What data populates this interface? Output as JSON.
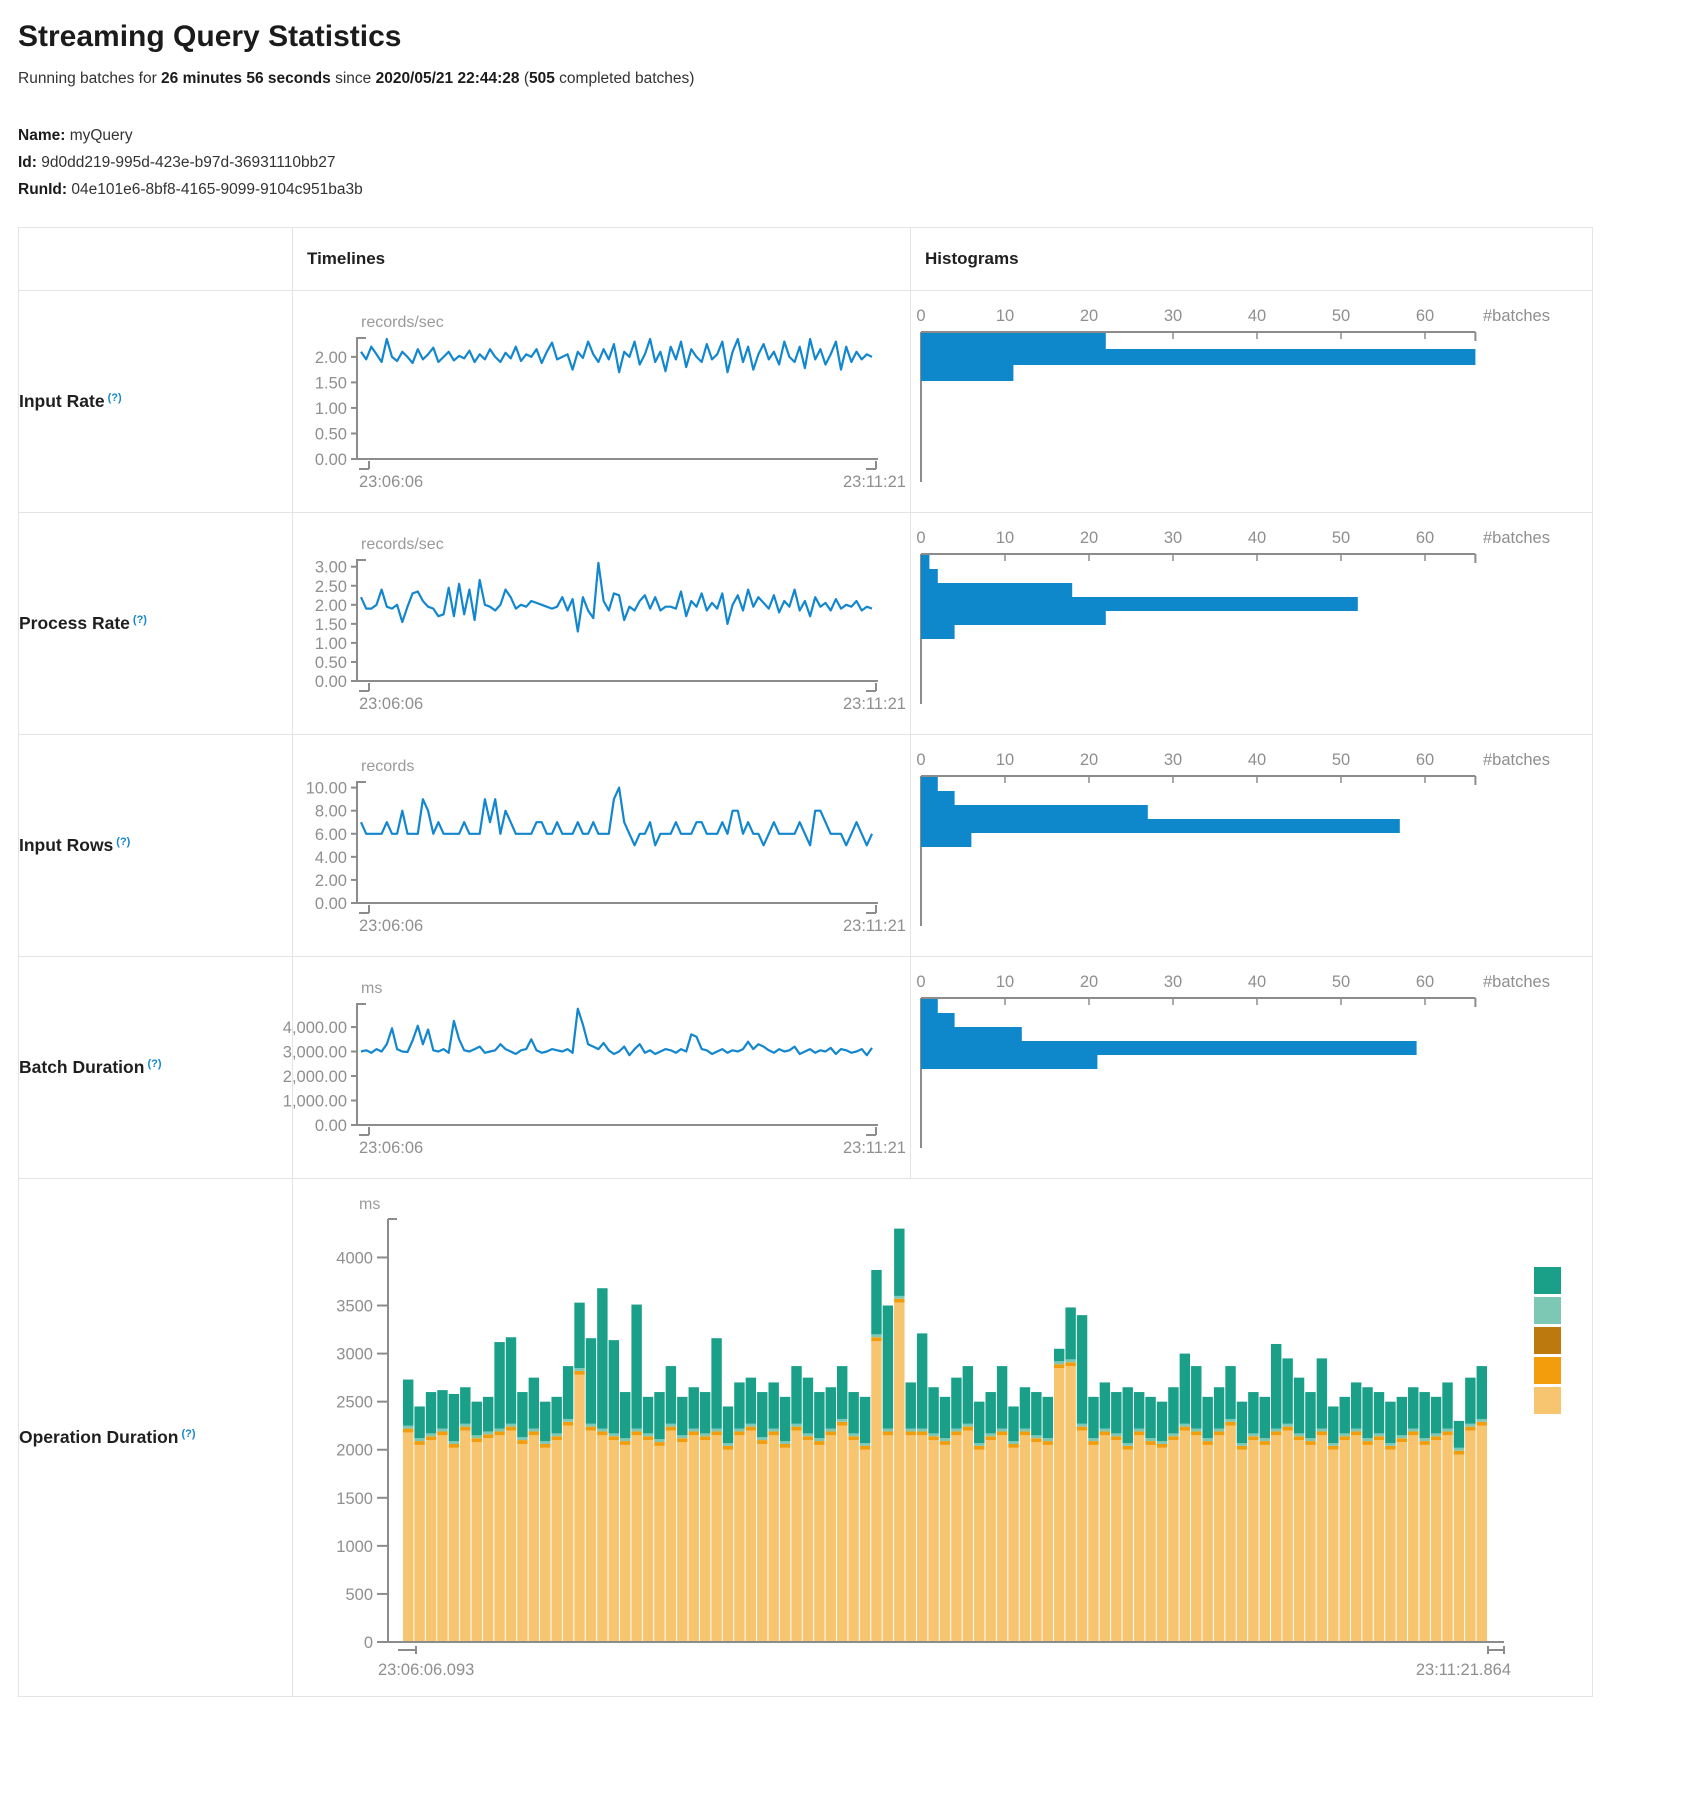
{
  "page": {
    "title": "Streaming Query Statistics",
    "subtitle_parts": [
      "Running batches for ",
      "26 minutes 56 seconds",
      " since ",
      "2020/05/21 22:44:28",
      " (",
      "505",
      " completed batches)"
    ],
    "name_label": "Name:",
    "name_value": "myQuery",
    "id_label": "Id:",
    "id_value": "9d0dd219-995d-423e-b97d-36931110bb27",
    "runid_label": "RunId:",
    "runid_value": "04e101e6-8bf8-4165-9099-9104c951ba3b"
  },
  "table": {
    "timelines_header": "Timelines",
    "histograms_header": "Histograms",
    "help_marker": "(?)",
    "rows": [
      {
        "label": "Input Rate"
      },
      {
        "label": "Process Rate"
      },
      {
        "label": "Input Rows"
      },
      {
        "label": "Batch Duration"
      },
      {
        "label": "Operation Duration"
      }
    ]
  },
  "colors": {
    "line_blue": "#1287cf",
    "hist_blue": "#0e87cb",
    "axis_gray": "#8c8c8c",
    "text_gray": "#8f8f8f",
    "help_blue": "#1386d0",
    "stack": [
      "#f7c46f",
      "#f39d0c",
      "#7cc8b5",
      "#1aa089"
    ],
    "legend": [
      "#1aa089",
      "#7cc8b5",
      "#bc790e",
      "#f39d0c",
      "#f7c46f"
    ]
  },
  "chart_data": [
    {
      "id": "input-rate-line",
      "type": "line",
      "unit": "records/sec",
      "x_start": "23:06:06",
      "x_end": "23:11:21",
      "ylim": [
        0,
        2.35
      ],
      "yticks": [
        {
          "v": 2,
          "label": "2.00"
        },
        {
          "v": 1.5,
          "label": "1.50"
        },
        {
          "v": 1,
          "label": "1.00"
        },
        {
          "v": 0.5,
          "label": "0.50"
        },
        {
          "v": 0,
          "label": "0.00"
        }
      ],
      "values": [
        2.1,
        1.95,
        2.2,
        2.05,
        1.9,
        2.35,
        2.0,
        1.92,
        2.1,
        2.0,
        1.88,
        2.15,
        1.95,
        2.05,
        2.18,
        1.9,
        2.0,
        2.1,
        1.93,
        2.02,
        1.97,
        2.12,
        1.9,
        2.05,
        1.95,
        2.15,
        2.0,
        1.9,
        2.08,
        1.97,
        2.2,
        1.92,
        2.05,
        2.0,
        2.15,
        1.88,
        2.1,
        2.28,
        1.95,
        2.0,
        2.05,
        1.75,
        2.1,
        1.98,
        2.3,
        2.05,
        1.9,
        2.15,
        1.95,
        2.25,
        1.7,
        2.1,
        2.0,
        2.3,
        1.85,
        2.05,
        2.35,
        1.9,
        2.1,
        1.72,
        2.2,
        1.95,
        2.3,
        1.8,
        2.15,
        2.0,
        1.9,
        2.25,
        1.95,
        2.05,
        2.3,
        1.7,
        2.1,
        2.35,
        1.9,
        2.2,
        1.75,
        2.05,
        2.25,
        1.95,
        2.1,
        1.85,
        2.3,
        2.0,
        1.9,
        2.2,
        1.78,
        2.35,
        1.95,
        2.15,
        1.85,
        2.05,
        2.3,
        1.75,
        2.2,
        1.9,
        2.1,
        1.95,
        2.05,
        2.0
      ]
    },
    {
      "id": "input-rate-hist",
      "type": "hbar",
      "xlabel": "#batches",
      "xticks": [
        0,
        10,
        20,
        30,
        40,
        50,
        60
      ],
      "xlim": [
        0,
        66
      ],
      "values": [
        22,
        66,
        11
      ]
    },
    {
      "id": "process-rate-line",
      "type": "line",
      "unit": "records/sec",
      "x_start": "23:06:06",
      "x_end": "23:11:21",
      "ylim": [
        0,
        3.15
      ],
      "yticks": [
        {
          "v": 3,
          "label": "3.00"
        },
        {
          "v": 2.5,
          "label": "2.50"
        },
        {
          "v": 2,
          "label": "2.00"
        },
        {
          "v": 1.5,
          "label": "1.50"
        },
        {
          "v": 1,
          "label": "1.00"
        },
        {
          "v": 0.5,
          "label": "0.50"
        },
        {
          "v": 0,
          "label": "0.00"
        }
      ],
      "values": [
        2.2,
        1.9,
        1.9,
        2.0,
        2.4,
        1.95,
        1.9,
        2.0,
        1.55,
        1.95,
        2.3,
        2.35,
        2.1,
        1.95,
        1.9,
        1.7,
        1.75,
        2.45,
        1.7,
        2.55,
        1.75,
        2.4,
        1.6,
        2.65,
        2.0,
        1.95,
        1.85,
        2.0,
        2.4,
        2.2,
        1.9,
        2.0,
        1.95,
        2.1,
        2.05,
        2.0,
        1.95,
        1.9,
        1.95,
        2.2,
        1.85,
        2.15,
        1.3,
        2.2,
        1.85,
        1.65,
        3.1,
        2.1,
        1.85,
        2.3,
        2.25,
        1.6,
        1.95,
        1.85,
        2.1,
        2.25,
        1.9,
        2.2,
        1.85,
        1.95,
        1.95,
        1.9,
        2.35,
        1.7,
        2.1,
        1.95,
        2.3,
        1.85,
        2.05,
        1.9,
        2.3,
        1.5,
        2.0,
        2.25,
        1.85,
        2.4,
        1.95,
        2.2,
        2.05,
        1.9,
        2.25,
        1.8,
        2.1,
        1.95,
        2.4,
        1.85,
        2.1,
        1.7,
        2.2,
        1.95,
        2.05,
        1.85,
        2.15,
        1.9,
        2.0,
        1.95,
        2.1,
        1.85,
        1.95,
        1.9
      ]
    },
    {
      "id": "process-rate-hist",
      "type": "hbar",
      "xlabel": "#batches",
      "xticks": [
        0,
        10,
        20,
        30,
        40,
        50,
        60
      ],
      "xlim": [
        0,
        66
      ],
      "values": [
        1,
        2,
        18,
        52,
        22,
        4
      ]
    },
    {
      "id": "input-rows-line",
      "type": "line",
      "unit": "records",
      "x_start": "23:06:06",
      "x_end": "23:11:21",
      "ylim": [
        0,
        10.4
      ],
      "yticks": [
        {
          "v": 10,
          "label": "10.00"
        },
        {
          "v": 8,
          "label": "8.00"
        },
        {
          "v": 6,
          "label": "6.00"
        },
        {
          "v": 4,
          "label": "4.00"
        },
        {
          "v": 2,
          "label": "2.00"
        },
        {
          "v": 0,
          "label": "0.00"
        }
      ],
      "values": [
        7,
        6,
        6,
        6,
        6,
        7,
        6,
        6,
        8,
        6,
        6,
        6,
        9,
        8,
        6,
        7,
        6,
        6,
        6,
        6,
        7,
        6,
        6,
        6,
        9,
        7,
        9,
        6,
        8,
        7,
        6,
        6,
        6,
        6,
        7,
        7,
        6,
        6,
        7,
        6,
        6,
        6,
        7,
        6,
        6,
        7,
        6,
        6,
        6,
        9,
        10,
        7,
        6,
        5,
        6,
        6,
        7,
        5,
        6,
        6,
        6,
        7,
        6,
        6,
        6,
        7,
        7,
        6,
        6,
        6,
        7,
        6,
        8,
        8,
        6,
        7,
        6,
        6,
        5,
        6,
        7,
        6,
        6,
        6,
        6,
        7,
        6,
        5,
        8,
        8,
        7,
        6,
        6,
        6,
        5,
        6,
        7,
        6,
        5,
        6
      ]
    },
    {
      "id": "input-rows-hist",
      "type": "hbar",
      "xlabel": "#batches",
      "xticks": [
        0,
        10,
        20,
        30,
        40,
        50,
        60
      ],
      "xlim": [
        0,
        66
      ],
      "values": [
        2,
        4,
        27,
        57,
        6
      ]
    },
    {
      "id": "batch-duration-line",
      "type": "line",
      "unit": "ms",
      "x_start": "23:06:06",
      "x_end": "23:11:21",
      "ylim": [
        0,
        4900
      ],
      "yticks": [
        {
          "v": 4000,
          "label": "4,000.00"
        },
        {
          "v": 3000,
          "label": "3,000.00"
        },
        {
          "v": 2000,
          "label": "2,000.00"
        },
        {
          "v": 1000,
          "label": "1,000.00"
        },
        {
          "v": 0,
          "label": "0.00"
        }
      ],
      "values": [
        3000,
        3050,
        2950,
        3100,
        3000,
        3300,
        3950,
        3100,
        3000,
        2980,
        3450,
        4050,
        3300,
        3900,
        3050,
        3000,
        3100,
        2950,
        4250,
        3500,
        3050,
        3000,
        3100,
        3200,
        2950,
        3000,
        3050,
        3300,
        3100,
        3000,
        2900,
        3050,
        3100,
        3500,
        3050,
        2950,
        3000,
        3100,
        3050,
        3000,
        3100,
        2950,
        4750,
        4100,
        3300,
        3200,
        3100,
        3350,
        3050,
        2900,
        3000,
        3200,
        2850,
        3100,
        3300,
        2950,
        3050,
        2900,
        3000,
        3100,
        3050,
        2950,
        3100,
        3000,
        3700,
        3600,
        3100,
        3050,
        2900,
        3000,
        3100,
        2950,
        3050,
        3000,
        3100,
        3400,
        3100,
        3300,
        3200,
        3050,
        2950,
        3100,
        3000,
        3050,
        3200,
        2900,
        3000,
        3100,
        2950,
        3050,
        3000,
        3150,
        2900,
        3100,
        3050,
        2950,
        3000,
        3100,
        2850,
        3150
      ]
    },
    {
      "id": "batch-duration-hist",
      "type": "hbar",
      "xlabel": "#batches",
      "xticks": [
        0,
        10,
        20,
        30,
        40,
        50,
        60
      ],
      "xlim": [
        0,
        66
      ],
      "values": [
        2,
        4,
        12,
        59,
        21
      ]
    },
    {
      "id": "operation-duration-stack",
      "type": "stacked-bar",
      "unit": "ms",
      "x_start": "23:06:06.093",
      "x_end": "23:11:21.864",
      "ylim": [
        0,
        4400
      ],
      "yticks": [
        {
          "v": 4000,
          "label": "4000"
        },
        {
          "v": 3500,
          "label": "3500"
        },
        {
          "v": 3000,
          "label": "3000"
        },
        {
          "v": 2500,
          "label": "2500"
        },
        {
          "v": 2000,
          "label": "2000"
        },
        {
          "v": 1500,
          "label": "1500"
        },
        {
          "v": 1000,
          "label": "1000"
        },
        {
          "v": 500,
          "label": "500"
        },
        {
          "v": 0,
          "label": "0"
        }
      ],
      "bars": [
        [
          2180,
          40,
          30,
          480
        ],
        [
          2050,
          40,
          30,
          330
        ],
        [
          2100,
          40,
          30,
          430
        ],
        [
          2150,
          40,
          30,
          400
        ],
        [
          2020,
          40,
          30,
          490
        ],
        [
          2200,
          40,
          30,
          380
        ],
        [
          2080,
          40,
          30,
          350
        ],
        [
          2120,
          40,
          30,
          360
        ],
        [
          2150,
          40,
          30,
          900
        ],
        [
          2200,
          40,
          30,
          900
        ],
        [
          2060,
          40,
          30,
          470
        ],
        [
          2150,
          40,
          30,
          530
        ],
        [
          2020,
          40,
          30,
          410
        ],
        [
          2100,
          40,
          30,
          380
        ],
        [
          2250,
          40,
          30,
          550
        ],
        [
          2780,
          40,
          30,
          680
        ],
        [
          2200,
          40,
          30,
          890
        ],
        [
          2150,
          40,
          30,
          1460
        ],
        [
          2100,
          40,
          30,
          970
        ],
        [
          2050,
          40,
          30,
          480
        ],
        [
          2150,
          40,
          30,
          1290
        ],
        [
          2100,
          40,
          30,
          380
        ],
        [
          2040,
          40,
          30,
          490
        ],
        [
          2200,
          40,
          30,
          600
        ],
        [
          2080,
          40,
          30,
          400
        ],
        [
          2150,
          40,
          30,
          430
        ],
        [
          2100,
          40,
          30,
          430
        ],
        [
          2150,
          40,
          30,
          940
        ],
        [
          2000,
          40,
          30,
          380
        ],
        [
          2150,
          40,
          30,
          480
        ],
        [
          2200,
          40,
          30,
          480
        ],
        [
          2060,
          40,
          30,
          470
        ],
        [
          2150,
          40,
          30,
          480
        ],
        [
          2020,
          40,
          30,
          460
        ],
        [
          2200,
          40,
          30,
          600
        ],
        [
          2100,
          40,
          30,
          580
        ],
        [
          2050,
          40,
          30,
          480
        ],
        [
          2150,
          40,
          30,
          430
        ],
        [
          2250,
          40,
          30,
          550
        ],
        [
          2100,
          40,
          30,
          430
        ],
        [
          2000,
          40,
          30,
          480
        ],
        [
          3130,
          40,
          30,
          670
        ],
        [
          2150,
          40,
          30,
          1280
        ],
        [
          3530,
          40,
          30,
          700
        ],
        [
          2150,
          40,
          30,
          480
        ],
        [
          2150,
          40,
          30,
          990
        ],
        [
          2100,
          40,
          30,
          480
        ],
        [
          2050,
          40,
          30,
          430
        ],
        [
          2150,
          40,
          30,
          530
        ],
        [
          2200,
          40,
          30,
          600
        ],
        [
          2000,
          40,
          30,
          430
        ],
        [
          2100,
          40,
          30,
          430
        ],
        [
          2150,
          40,
          30,
          650
        ],
        [
          2020,
          40,
          30,
          360
        ],
        [
          2150,
          40,
          30,
          430
        ],
        [
          2080,
          40,
          30,
          450
        ],
        [
          2050,
          40,
          30,
          430
        ],
        [
          2850,
          40,
          30,
          130
        ],
        [
          2870,
          40,
          30,
          540
        ],
        [
          2200,
          40,
          30,
          1130
        ],
        [
          2050,
          40,
          30,
          430
        ],
        [
          2150,
          40,
          30,
          480
        ],
        [
          2100,
          40,
          30,
          430
        ],
        [
          2000,
          40,
          30,
          580
        ],
        [
          2150,
          40,
          30,
          380
        ],
        [
          2050,
          40,
          30,
          430
        ],
        [
          2020,
          40,
          30,
          410
        ],
        [
          2100,
          40,
          30,
          480
        ],
        [
          2200,
          40,
          30,
          730
        ],
        [
          2150,
          40,
          30,
          650
        ],
        [
          2050,
          40,
          30,
          430
        ],
        [
          2150,
          40,
          30,
          430
        ],
        [
          2250,
          40,
          30,
          550
        ],
        [
          2000,
          40,
          30,
          430
        ],
        [
          2100,
          40,
          30,
          430
        ],
        [
          2050,
          40,
          30,
          430
        ],
        [
          2150,
          40,
          30,
          880
        ],
        [
          2200,
          40,
          30,
          680
        ],
        [
          2100,
          40,
          30,
          580
        ],
        [
          2050,
          40,
          30,
          480
        ],
        [
          2150,
          40,
          30,
          730
        ],
        [
          2000,
          40,
          30,
          380
        ],
        [
          2100,
          40,
          30,
          380
        ],
        [
          2150,
          40,
          30,
          480
        ],
        [
          2050,
          40,
          30,
          530
        ],
        [
          2100,
          40,
          30,
          430
        ],
        [
          2000,
          40,
          30,
          430
        ],
        [
          2080,
          40,
          30,
          400
        ],
        [
          2150,
          40,
          30,
          430
        ],
        [
          2050,
          40,
          30,
          480
        ],
        [
          2100,
          40,
          30,
          380
        ],
        [
          2150,
          40,
          30,
          480
        ],
        [
          1950,
          40,
          30,
          280
        ],
        [
          2200,
          40,
          30,
          480
        ],
        [
          2250,
          40,
          30,
          550
        ]
      ]
    }
  ]
}
